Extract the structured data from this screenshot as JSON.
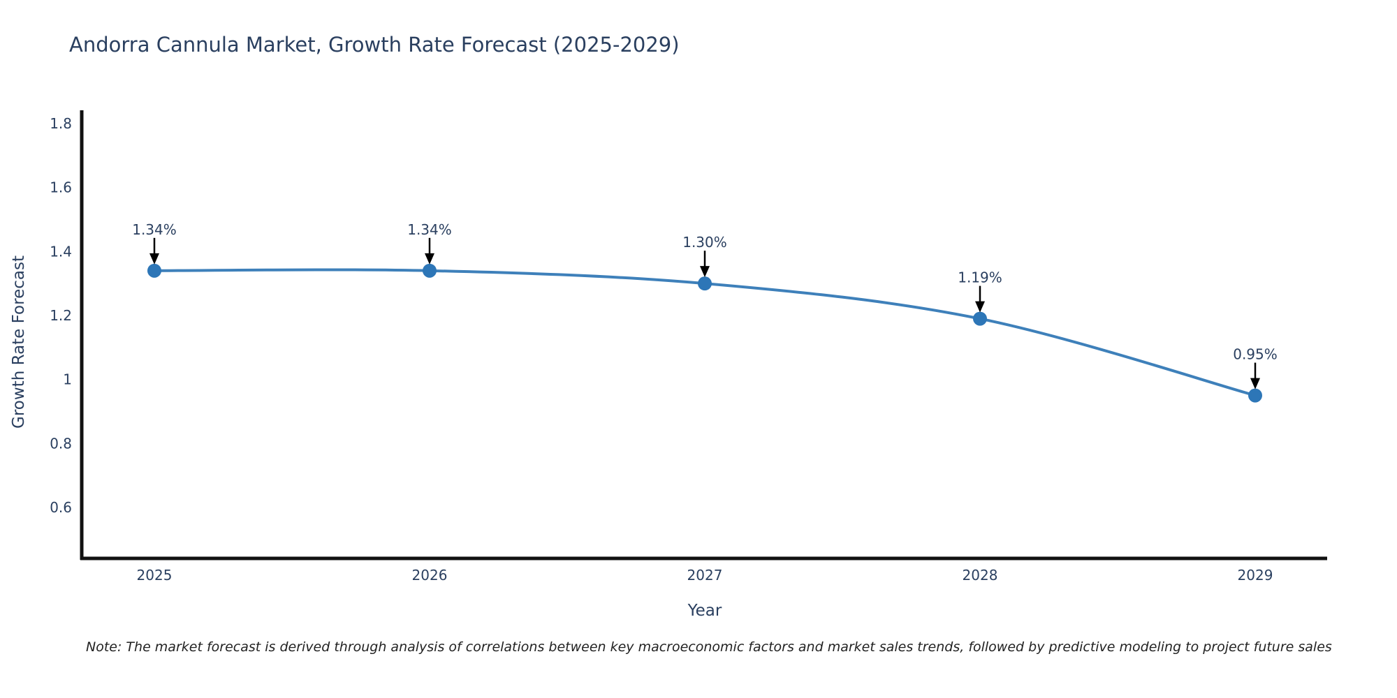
{
  "header": {
    "title": "Andorra Cannula Market, Growth Rate Forecast (2025-2029)"
  },
  "footnote": {
    "text": "Note: The market forecast is derived through analysis of correlations between key macroeconomic factors and market sales trends, followed by predictive modeling to project future sales"
  },
  "chart_data": {
    "type": "line",
    "title": "Andorra Cannula Market, Growth Rate Forecast (2025-2029)",
    "xlabel": "Year",
    "ylabel": "Growth Rate Forecast",
    "x": [
      2025,
      2026,
      2027,
      2028,
      2029
    ],
    "x_tick_labels": [
      "2025",
      "2026",
      "2027",
      "2028",
      "2029"
    ],
    "series": [
      {
        "name": "Growth Rate Forecast",
        "values": [
          1.34,
          1.34,
          1.3,
          1.19,
          0.95
        ]
      }
    ],
    "point_labels": [
      "1.34%",
      "1.34%",
      "1.30%",
      "1.19%",
      "0.95%"
    ],
    "y_ticks": [
      {
        "value": 1.8,
        "label": "1.8"
      },
      {
        "value": 1.6,
        "label": "1.6"
      },
      {
        "value": 1.4,
        "label": "1.4"
      },
      {
        "value": 1.2,
        "label": "1.2"
      },
      {
        "value": 1.0,
        "label": "1"
      },
      {
        "value": 0.8,
        "label": "0.8"
      },
      {
        "value": 0.6,
        "label": "0.6"
      }
    ],
    "ylim": [
      0.44,
      1.84
    ],
    "grid": false,
    "legend": "none",
    "colors": {
      "line": "#3e80ba",
      "marker": "#2d76b7",
      "axis": "#111111",
      "text": "#2a3f5f",
      "arrow": "#000000"
    }
  }
}
